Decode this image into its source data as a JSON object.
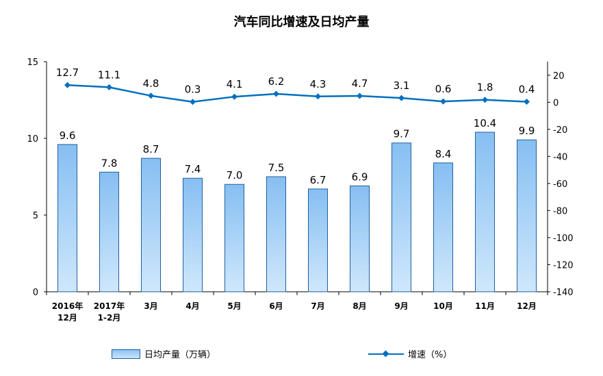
{
  "chart_data": {
    "type": "bar",
    "title": "汽车同比增速及日均产量",
    "categories": [
      "2016年\n12月",
      "2017年\n1-2月",
      "3月",
      "4月",
      "5月",
      "6月",
      "7月",
      "8月",
      "9月",
      "10月",
      "11月",
      "12月"
    ],
    "series": [
      {
        "name": "日均产量（万辆）",
        "type": "bar",
        "axis": "left",
        "values": [
          9.6,
          7.8,
          8.7,
          7.4,
          7.0,
          7.5,
          6.7,
          6.9,
          9.7,
          8.4,
          10.4,
          9.9
        ],
        "color": "#9ccbf5"
      },
      {
        "name": "增速（%）",
        "type": "line",
        "axis": "right",
        "values": [
          12.7,
          11.1,
          4.8,
          0.3,
          4.1,
          6.2,
          4.3,
          4.7,
          3.1,
          0.6,
          1.8,
          0.4
        ],
        "color": "#0070c0"
      }
    ],
    "left_axis": {
      "ylim": [
        0,
        15
      ],
      "ticks": [
        "0",
        "5",
        "10",
        "15"
      ]
    },
    "right_axis": {
      "ylim": [
        -140,
        30
      ],
      "ticks": [
        "20",
        "0",
        "-20",
        "-40",
        "-60",
        "-80",
        "-100",
        "-120",
        "-140"
      ]
    },
    "legend_position": "bottom"
  }
}
